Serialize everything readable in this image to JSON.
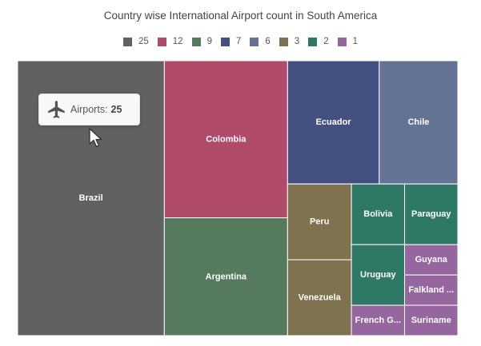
{
  "chart_data": {
    "type": "treemap",
    "title": "Country wise International Airport count in South America",
    "legend": {
      "placement": "top",
      "entries": [
        {
          "label": "25",
          "color": "#616161"
        },
        {
          "label": "12",
          "color": "#B14B6A"
        },
        {
          "label": "9",
          "color": "#557A5D"
        },
        {
          "label": "7",
          "color": "#445080"
        },
        {
          "label": "6",
          "color": "#647293"
        },
        {
          "label": "3",
          "color": "#7E724F"
        },
        {
          "label": "2",
          "color": "#2E7866"
        },
        {
          "label": "1",
          "color": "#96679E"
        }
      ]
    },
    "items": [
      {
        "name": "Brazil",
        "label": "Brazil",
        "value": 25,
        "color": "#616161"
      },
      {
        "name": "Colombia",
        "label": "Colombia",
        "value": 12,
        "color": "#B14B6A"
      },
      {
        "name": "Argentina",
        "label": "Argentina",
        "value": 9,
        "color": "#557A5D"
      },
      {
        "name": "Ecuador",
        "label": "Ecuador",
        "value": 7,
        "color": "#445080"
      },
      {
        "name": "Chile",
        "label": "Chile",
        "value": 6,
        "color": "#647293"
      },
      {
        "name": "Peru",
        "label": "Peru",
        "value": 3,
        "color": "#7E724F"
      },
      {
        "name": "Venezuela",
        "label": "Venezuela",
        "value": 3,
        "color": "#7E724F"
      },
      {
        "name": "Bolivia",
        "label": "Bolivia",
        "value": 2,
        "color": "#2E7866"
      },
      {
        "name": "Paraguay",
        "label": "Paraguay",
        "value": 2,
        "color": "#2E7866"
      },
      {
        "name": "Uruguay",
        "label": "Uruguay",
        "value": 2,
        "color": "#2E7866"
      },
      {
        "name": "French Guiana",
        "label": "French G...",
        "value": 1,
        "color": "#96679E"
      },
      {
        "name": "Guyana",
        "label": "Guyana",
        "value": 1,
        "color": "#96679E"
      },
      {
        "name": "Falkland Islands",
        "label": "Falkland ...",
        "value": 1,
        "color": "#96679E"
      },
      {
        "name": "Suriname",
        "label": "Suriname",
        "value": 1,
        "color": "#96679E"
      }
    ]
  },
  "tooltip": {
    "label": "Airports:",
    "value": "25",
    "icon": "airplane-icon"
  },
  "cursor": {
    "icon": "mouse-pointer-icon"
  }
}
